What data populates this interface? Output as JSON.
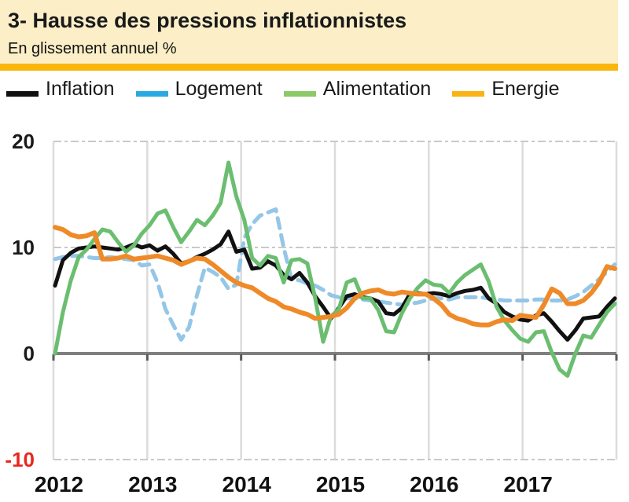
{
  "header": {
    "title": "3- Hausse des pressions inflationnistes",
    "subtitle": "En glissement annuel %"
  },
  "colors": {
    "header_bg": "#FCEFC7",
    "accent_bar": "#FBB60D",
    "grid": "#DCDCDC",
    "grid_dashed": "#C9C9C9",
    "zero_line": "#7F7F7F",
    "axis_tick": "#595959",
    "tick_text": "#1A1A1A",
    "negative_tick": "#E8281E",
    "background": "#FFFFFF"
  },
  "chart_data": {
    "type": "line",
    "title": "Hausse des pressions inflationnistes",
    "ylabel": "En glissement annuel %",
    "x_unit": "month",
    "x_start": "2012-01",
    "x_end": "2017-12",
    "x_tick_labels": [
      "2012",
      "2013",
      "2014",
      "2015",
      "2016",
      "2017"
    ],
    "y_ticks": [
      {
        "label": "20",
        "value": 20
      },
      {
        "label": "10",
        "value": 10
      },
      {
        "label": "0",
        "value": 0
      },
      {
        "label": "-10",
        "value": -10
      }
    ],
    "ylim": [
      -10,
      20
    ],
    "grid": "horizontal dashed at 20/10/-10, solid gray zero line, vertical yearly lines",
    "legend_position": "top",
    "series": [
      {
        "name": "Inflation",
        "style": "solid",
        "line_color": "#111111",
        "legend_color": "#111111",
        "values": [
          6.4,
          8.8,
          9.5,
          9.9,
          10.0,
          10.1,
          10.0,
          9.9,
          9.8,
          10.0,
          10.3,
          10.0,
          10.2,
          9.7,
          10.1,
          9.4,
          8.5,
          8.7,
          9.1,
          9.4,
          9.8,
          10.3,
          11.5,
          9.6,
          9.8,
          8.0,
          8.1,
          8.7,
          8.3,
          7.4,
          7.0,
          7.6,
          6.7,
          5.4,
          4.4,
          3.3,
          4.3,
          5.4,
          5.6,
          5.3,
          5.2,
          4.9,
          3.8,
          3.7,
          4.3,
          5.6,
          5.7,
          5.6,
          5.7,
          5.6,
          5.4,
          5.7,
          5.9,
          6.0,
          6.2,
          5.2,
          4.7,
          3.9,
          3.5,
          3.2,
          3.1,
          3.6,
          3.8,
          3.0,
          2.1,
          1.3,
          2.2,
          3.3,
          3.4,
          3.5,
          4.4,
          5.2
        ]
      },
      {
        "name": "Logement",
        "style": "dashed",
        "line_color": "#94C6E7",
        "legend_color": "#29A9E2",
        "values": [
          8.9,
          9.1,
          9.2,
          9.2,
          9.1,
          9.0,
          9.0,
          9.1,
          9.0,
          8.9,
          8.8,
          8.3,
          8.4,
          6.7,
          4.2,
          2.7,
          1.3,
          2.5,
          5.5,
          8.1,
          7.7,
          7.2,
          6.1,
          6.5,
          10.9,
          12.2,
          13.0,
          13.3,
          13.6,
          10.0,
          7.0,
          6.9,
          6.6,
          6.4,
          6.0,
          5.5,
          5.3,
          5.2,
          5.2,
          5.1,
          5.0,
          4.9,
          4.8,
          4.7,
          4.6,
          4.7,
          4.8,
          5.0,
          5.2,
          5.2,
          5.1,
          5.3,
          5.3,
          5.3,
          5.3,
          5.2,
          5.1,
          5.0,
          5.0,
          5.0,
          5.0,
          5.1,
          5.1,
          5.0,
          5.0,
          5.1,
          5.4,
          5.8,
          6.4,
          7.0,
          7.7,
          8.4
        ]
      },
      {
        "name": "Alimentation",
        "style": "solid",
        "line_color": "#6BBE70",
        "legend_color": "#8CC967",
        "values": [
          0.0,
          3.9,
          6.9,
          9.1,
          9.8,
          10.8,
          11.7,
          11.5,
          10.5,
          9.6,
          10.2,
          11.3,
          12.1,
          13.2,
          13.5,
          11.9,
          10.5,
          11.5,
          12.6,
          12.1,
          13.0,
          14.2,
          18.0,
          14.8,
          12.6,
          9.0,
          8.3,
          9.2,
          9.0,
          6.7,
          8.8,
          8.9,
          8.5,
          5.2,
          1.1,
          3.5,
          4.2,
          6.7,
          7.0,
          5.2,
          5.2,
          4.1,
          2.1,
          2.0,
          3.8,
          5.2,
          6.2,
          6.9,
          6.5,
          6.4,
          5.7,
          6.7,
          7.4,
          7.9,
          8.4,
          6.8,
          4.4,
          3.1,
          2.2,
          1.4,
          1.1,
          2.0,
          2.1,
          0.1,
          -1.5,
          -2.1,
          0.0,
          1.7,
          1.5,
          2.7,
          3.9,
          4.7
        ]
      },
      {
        "name": "Energie",
        "style": "solid",
        "line_color": "#EF8A28",
        "legend_color": "#F9B314",
        "values": [
          11.9,
          11.7,
          11.2,
          11.0,
          11.1,
          11.4,
          8.9,
          8.9,
          9.0,
          9.2,
          8.9,
          9.0,
          9.1,
          9.2,
          9.0,
          8.8,
          8.4,
          8.7,
          9.0,
          8.9,
          8.4,
          7.8,
          7.2,
          6.7,
          6.4,
          6.2,
          5.7,
          5.2,
          4.9,
          4.4,
          4.2,
          3.9,
          3.7,
          3.3,
          3.4,
          3.5,
          3.7,
          4.3,
          5.2,
          5.7,
          5.9,
          6.0,
          5.7,
          5.6,
          5.8,
          5.7,
          5.6,
          5.6,
          5.2,
          4.6,
          3.7,
          3.3,
          3.1,
          2.8,
          2.7,
          2.7,
          3.0,
          3.2,
          3.1,
          3.6,
          3.5,
          3.4,
          4.6,
          6.1,
          5.7,
          4.7,
          4.7,
          5.0,
          5.7,
          6.7,
          8.2,
          8.0
        ]
      }
    ]
  }
}
